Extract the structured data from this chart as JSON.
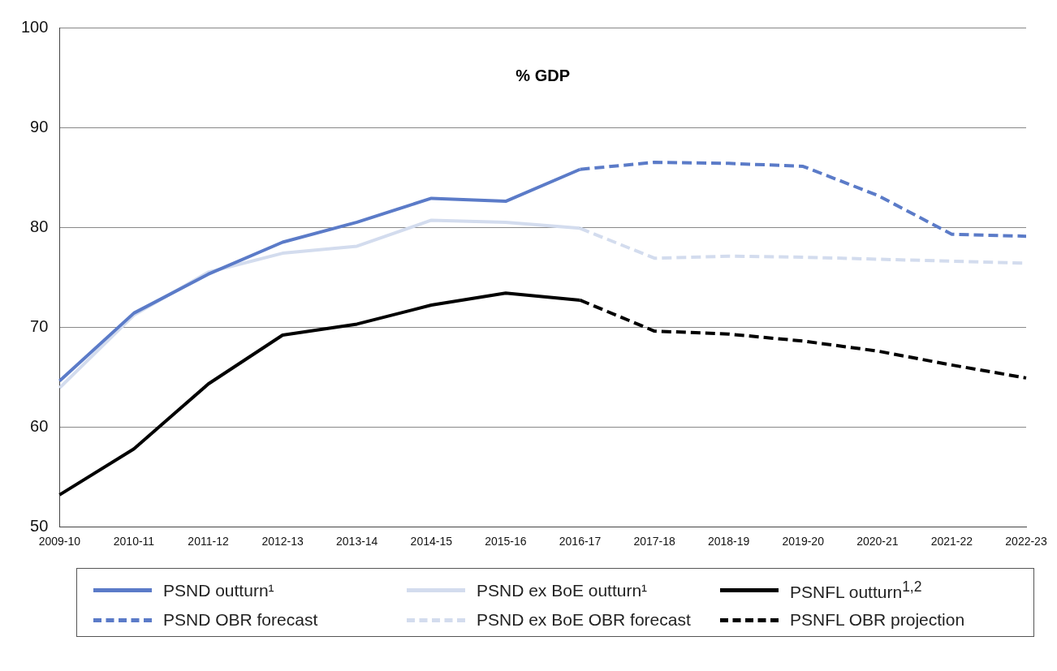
{
  "chart_data": {
    "type": "line",
    "title": "% GDP",
    "categories": [
      "2009-10",
      "2010-11",
      "2011-12",
      "2012-13",
      "2013-14",
      "2014-15",
      "2015-16",
      "2016-17",
      "2017-18",
      "2018-19",
      "2019-20",
      "2020-21",
      "2021-22",
      "2022-23"
    ],
    "series": [
      {
        "name": "PSND outturn¹",
        "color": "#5b7bc8",
        "line_style": "solid",
        "values": [
          64.6,
          71.4,
          75.3,
          78.5,
          80.5,
          82.9,
          82.6,
          85.8,
          null,
          null,
          null,
          null,
          null,
          null
        ]
      },
      {
        "name": "PSND ex BoE outturn¹",
        "color": "#d3dcee",
        "line_style": "solid",
        "values": [
          63.9,
          71.2,
          75.5,
          77.4,
          78.1,
          80.7,
          80.5,
          79.9,
          null,
          null,
          null,
          null,
          null,
          null
        ]
      },
      {
        "name": "PSNFL outturn$^{1,2}$",
        "color": "#000000",
        "line_style": "solid",
        "values": [
          53.2,
          57.8,
          64.3,
          69.2,
          70.3,
          72.2,
          73.4,
          72.7,
          null,
          null,
          null,
          null,
          null,
          null
        ]
      },
      {
        "name": "PSND OBR forecast",
        "color": "#5b7bc8",
        "line_style": "dashed",
        "values": [
          null,
          null,
          null,
          null,
          null,
          null,
          null,
          85.8,
          86.5,
          86.4,
          86.1,
          83.2,
          79.3,
          79.1
        ]
      },
      {
        "name": "PSND ex BoE OBR forecast",
        "color": "#d3dcee",
        "line_style": "dashed",
        "values": [
          null,
          null,
          null,
          null,
          null,
          null,
          null,
          79.9,
          76.9,
          77.1,
          77.0,
          76.8,
          76.6,
          76.4
        ]
      },
      {
        "name": "PSNFL OBR projection",
        "color": "#000000",
        "line_style": "dashed",
        "values": [
          null,
          null,
          null,
          null,
          null,
          null,
          null,
          72.7,
          69.6,
          69.3,
          68.6,
          67.6,
          66.2,
          64.9
        ]
      }
    ],
    "ylim": [
      50,
      100
    ],
    "yticks": [
      50,
      60,
      70,
      80,
      90,
      100
    ],
    "grid": "y",
    "legend": "bottom",
    "marker": "none"
  }
}
